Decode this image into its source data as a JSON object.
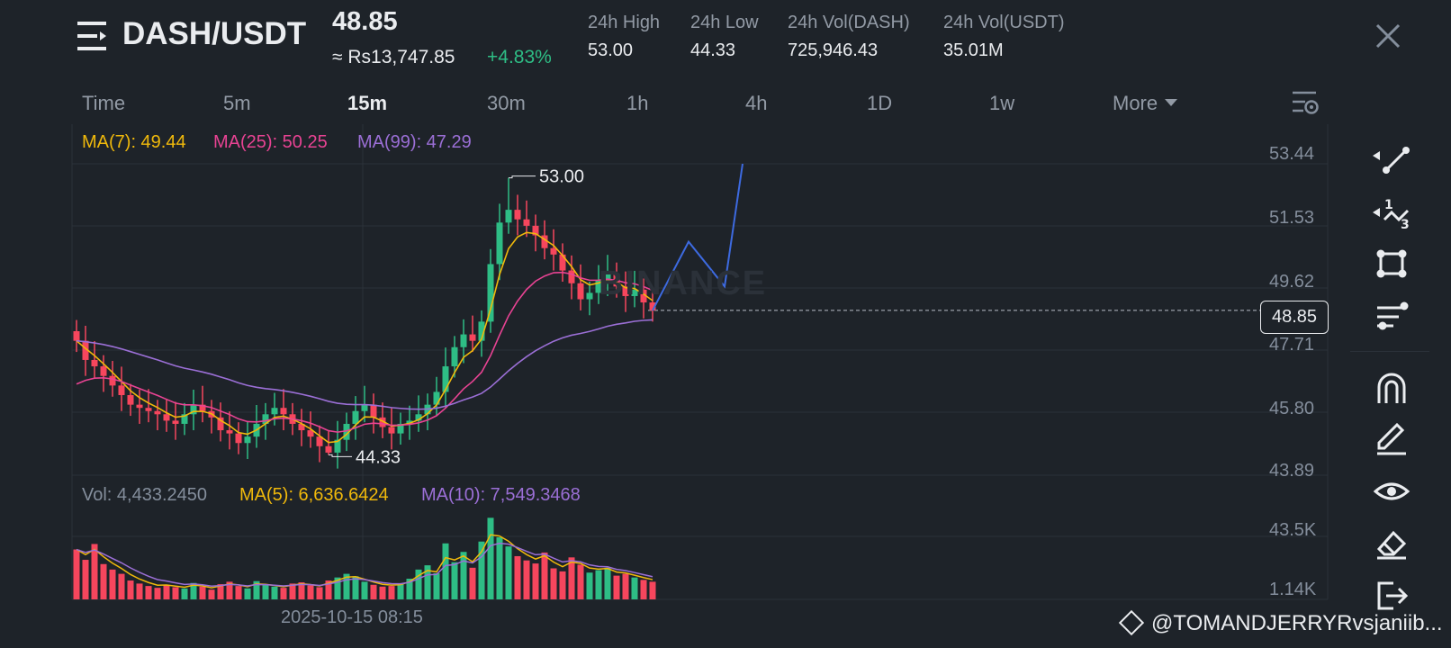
{
  "header": {
    "pair": "DASH/USDT",
    "last_price": "48.85",
    "fiat_price": "≈ Rs13,747.85",
    "change": "+4.83%",
    "stats": [
      {
        "label": "24h High",
        "value": "53.00"
      },
      {
        "label": "24h Low",
        "value": "44.33"
      },
      {
        "label": "24h Vol(DASH)",
        "value": "725,946.43"
      },
      {
        "label": "24h Vol(USDT)",
        "value": "35.01M"
      }
    ]
  },
  "timeframes": [
    "Time",
    "5m",
    "15m",
    "30m",
    "1h",
    "4h",
    "1D",
    "1w",
    "More"
  ],
  "active_timeframe": "15m",
  "indicators": {
    "ma7": "MA(7): 49.44",
    "ma25": "MA(25): 50.25",
    "ma99": "MA(99): 47.29",
    "vol": "Vol: 4,433.2450",
    "vol_ma5": "MA(5): 6,636.6424",
    "vol_ma10": "MA(10): 7,549.3468"
  },
  "price_axis": [
    "53.44",
    "51.53",
    "49.62",
    "47.71",
    "45.80",
    "43.89"
  ],
  "current_price_tag": "48.85",
  "volume_axis": [
    "43.5K",
    "1.14K"
  ],
  "high_marker": "53.00",
  "low_marker": "44.33",
  "time_label": "2025-10-15 08:15",
  "watermark": "BINANCE",
  "attribution": "@TOMANDJERRYRvsjaniib...",
  "colors": {
    "background": "#1e2329",
    "up": "#2ebd85",
    "down": "#f6465d",
    "ma7": "#f0b90b",
    "ma25": "#e84393",
    "ma99": "#9b6fd6",
    "drawing": "#3d6ae0"
  },
  "tools": [
    "trend-line-icon",
    "fib-icon",
    "shape-icon",
    "parallel-lines-icon",
    "magnet-icon",
    "pencil-icon",
    "eye-icon",
    "eraser-icon",
    "exit-icon"
  ],
  "chart_data": {
    "type": "candlestick",
    "interval": "15m",
    "y_range": [
      43.89,
      53.44
    ],
    "high": 53.0,
    "low": 44.33,
    "last": 48.85,
    "ma_values": {
      "ma7": 49.44,
      "ma25": 50.25,
      "ma99": 47.29
    },
    "volume_range": [
      1140,
      43500
    ],
    "volume": 4433.245,
    "volume_ma": {
      "ma5": 6636.6424,
      "ma10": 7549.3468
    },
    "closes": [
      47.9,
      47.3,
      47.1,
      46.8,
      46.5,
      46.2,
      45.9,
      45.8,
      45.7,
      45.6,
      45.4,
      45.3,
      45.6,
      45.9,
      45.7,
      45.5,
      45.1,
      45.0,
      44.7,
      44.9,
      45.3,
      45.6,
      45.8,
      45.6,
      45.3,
      45.1,
      44.9,
      44.6,
      44.4,
      44.8,
      45.3,
      45.7,
      45.9,
      45.5,
      45.2,
      45.0,
      45.3,
      45.4,
      45.6,
      45.9,
      46.3,
      47.1,
      47.7,
      48.1,
      47.9,
      48.5,
      50.3,
      51.6,
      52.0,
      51.7,
      51.5,
      51.2,
      50.8,
      50.6,
      50.1,
      49.7,
      49.2,
      49.4,
      49.8,
      50.0,
      49.6,
      49.3,
      49.5,
      49.1,
      48.85
    ],
    "volumes": [
      8.2,
      6.5,
      9.1,
      5.8,
      4.9,
      4.2,
      3.1,
      2.6,
      2.2,
      1.9,
      2.4,
      2.0,
      1.8,
      2.7,
      2.1,
      1.6,
      2.5,
      2.9,
      2.2,
      1.8,
      3.0,
      2.4,
      2.1,
      1.9,
      2.6,
      2.8,
      2.3,
      2.0,
      3.1,
      3.6,
      4.2,
      3.8,
      2.9,
      2.4,
      2.1,
      2.2,
      2.5,
      3.4,
      4.9,
      5.6,
      4.3,
      9.2,
      6.1,
      7.8,
      5.2,
      9.5,
      13.4,
      10.2,
      8.7,
      7.1,
      6.4,
      5.9,
      7.7,
      5.1,
      4.6,
      6.9,
      5.7,
      4.4,
      4.8,
      5.2,
      3.9,
      4.2,
      3.6,
      3.2,
      2.9
    ],
    "drawing_polyline": [
      [
        64,
        48.85
      ],
      [
        68,
        51.0
      ],
      [
        72,
        49.6
      ],
      [
        74,
        53.44
      ]
    ]
  }
}
